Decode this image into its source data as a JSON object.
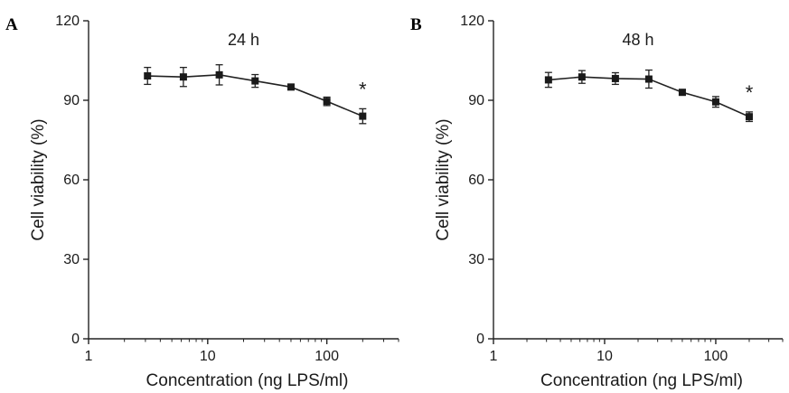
{
  "chart_data": [
    {
      "type": "line",
      "panel_label": "A",
      "title": "24 h",
      "xlabel": "Concentration (ng LPS/ml)",
      "ylabel": "Cell viability (%)",
      "x_scale": "log",
      "xlim": [
        1,
        400
      ],
      "ylim": [
        0,
        120
      ],
      "x_ticks": [
        1,
        10,
        100
      ],
      "x_tick_labels": [
        "1",
        "10",
        "100"
      ],
      "y_ticks": [
        0,
        30,
        60,
        90,
        120
      ],
      "y_tick_labels": [
        "0",
        "30",
        "60",
        "90",
        "120"
      ],
      "grid": false,
      "series": [
        {
          "x": [
            3.125,
            6.25,
            12.5,
            25,
            50,
            100,
            200
          ],
          "y": [
            99.2,
            98.8,
            99.6,
            97.3,
            95.0,
            89.6,
            84.0
          ],
          "error": [
            3.2,
            3.6,
            3.8,
            2.4,
            1.0,
            1.6,
            2.8
          ]
        }
      ],
      "annotations": [
        {
          "text": "*",
          "x": 200
        }
      ]
    },
    {
      "type": "line",
      "panel_label": "B",
      "title": "48 h",
      "xlabel": "Concentration (ng LPS/ml)",
      "ylabel": "Cell viability (%)",
      "x_scale": "log",
      "xlim": [
        1,
        400
      ],
      "ylim": [
        0,
        120
      ],
      "x_ticks": [
        1,
        10,
        100
      ],
      "x_tick_labels": [
        "1",
        "10",
        "100"
      ],
      "y_ticks": [
        0,
        30,
        60,
        90,
        120
      ],
      "y_tick_labels": [
        "0",
        "30",
        "60",
        "90",
        "120"
      ],
      "grid": false,
      "series": [
        {
          "x": [
            3.125,
            6.25,
            12.5,
            25,
            50,
            100,
            200
          ],
          "y": [
            97.7,
            98.8,
            98.2,
            98.0,
            93.0,
            89.4,
            83.8
          ],
          "error": [
            2.8,
            2.4,
            2.2,
            3.4,
            1.0,
            2.0,
            1.8
          ]
        }
      ],
      "annotations": [
        {
          "text": "*",
          "x": 200
        }
      ]
    }
  ]
}
